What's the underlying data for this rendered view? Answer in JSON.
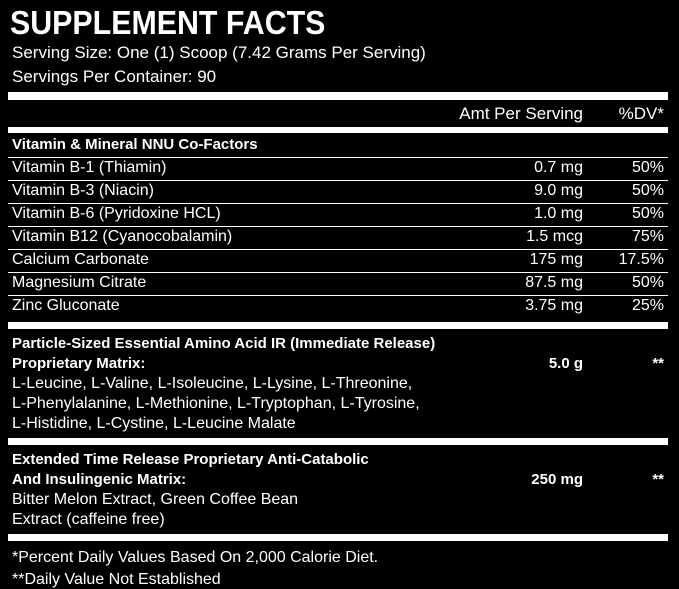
{
  "title": "SUPPLEMENT FACTS",
  "serving_size": "Serving Size: One (1) Scoop (7.42 Grams Per Serving)",
  "servings_per_container": "Servings Per Container: 90",
  "header": {
    "amount": "Amt Per Serving",
    "dv": "%DV*"
  },
  "sections": [
    {
      "title": [
        "Vitamin & Mineral NNU Co-Factors"
      ],
      "rows": [
        [
          "Vitamin B-1 (Thiamin)",
          "0.7 mg",
          "50%"
        ],
        [
          "Vitamin B-3 (Niacin)",
          "9.0 mg",
          "50%"
        ],
        [
          "Vitamin B-6 (Pyridoxine HCL)",
          "1.0 mg",
          "50%"
        ],
        [
          "Vitamin B12 (Cyanocobalamin)",
          "1.5 mcg",
          "75%"
        ],
        [
          "Calcium Carbonate",
          "175 mg",
          "17.5%"
        ],
        [
          "Magnesium Citrate",
          "87.5 mg",
          "50%"
        ],
        [
          "Zinc Gluconate",
          "3.75 mg",
          "25%"
        ]
      ]
    },
    {
      "title": [
        "Particle-Sized Essential Amino Acid IR (Immediate Release)",
        "Proprietary Matrix:"
      ],
      "amount": "5.0 g",
      "dv": "**",
      "ingredients": [
        "L-Leucine, L-Valine, L-Isoleucine, L-Lysine, L-Threonine,",
        "L-Phenylalanine, L-Methionine, L-Tryptophan, L-Tyrosine,",
        "L-Histidine, L-Cystine, L-Leucine Malate"
      ]
    },
    {
      "title": [
        "Extended Time Release Proprietary Anti-Catabolic",
        "And Insulingenic Matrix:"
      ],
      "amount": "250 mg",
      "dv": "**",
      "ingredients": [
        "Bitter Melon Extract, Green Coffee Bean",
        "Extract (caffeine free)"
      ]
    }
  ],
  "footnotes": [
    "*Percent Daily Values Based On 2,000 Calorie Diet.",
    "**Daily Value Not Established"
  ]
}
